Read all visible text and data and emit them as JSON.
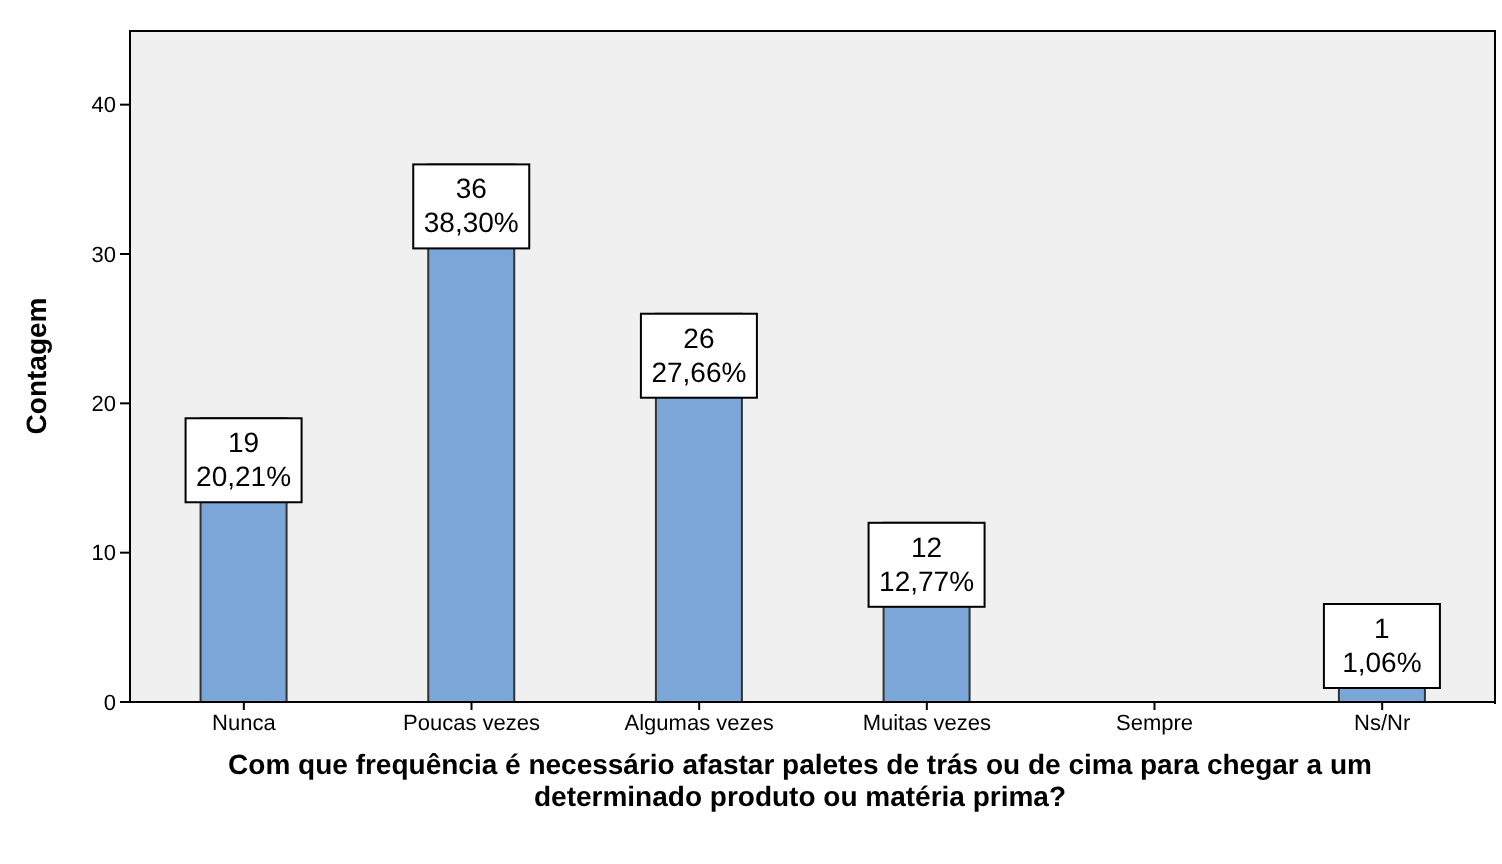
{
  "chart_data": {
    "type": "bar",
    "xlabel": "Com que frequência é necessário afastar paletes de trás ou de cima para chegar a um determinado produto ou matéria prima?",
    "ylabel": "Contagem",
    "categories": [
      "Nunca",
      "Poucas vezes",
      "Algumas vezes",
      "Muitas vezes",
      "Sempre",
      "Ns/Nr"
    ],
    "values": [
      19,
      36,
      26,
      12,
      0,
      1
    ],
    "value_labels": [
      "19\n20,21%",
      "36\n38,30%",
      "26\n27,66%",
      "12\n12,77%",
      null,
      "1\n1,06%"
    ],
    "color": "#7ba6d8",
    "ylim": [
      0,
      45
    ],
    "yticks": [
      0,
      10,
      20,
      30,
      40
    ]
  }
}
